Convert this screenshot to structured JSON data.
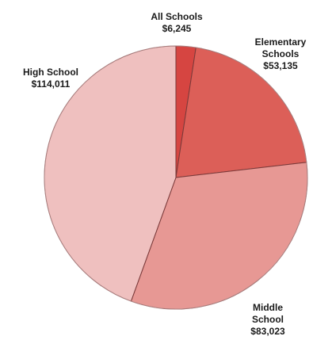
{
  "chart_data": {
    "type": "pie",
    "categories": [
      "All Schools",
      "Elementary Schools",
      "Middle School",
      "High School"
    ],
    "values": [
      6245,
      53135,
      83023,
      114011
    ],
    "value_labels": [
      "$6,245",
      "$53,135",
      "$83,023",
      "$114,011"
    ],
    "label_lines": [
      [
        "All Schools"
      ],
      [
        "Elementary",
        "Schools"
      ],
      [
        "Middle",
        "School"
      ],
      [
        "High School"
      ]
    ],
    "colors": [
      "#d64541",
      "#dc5f58",
      "#e79894",
      "#efc0bf"
    ],
    "start_angle_deg": 0,
    "direction": "clockwise",
    "edge_color": "#7a3a3a",
    "title": "",
    "legend": "none"
  }
}
